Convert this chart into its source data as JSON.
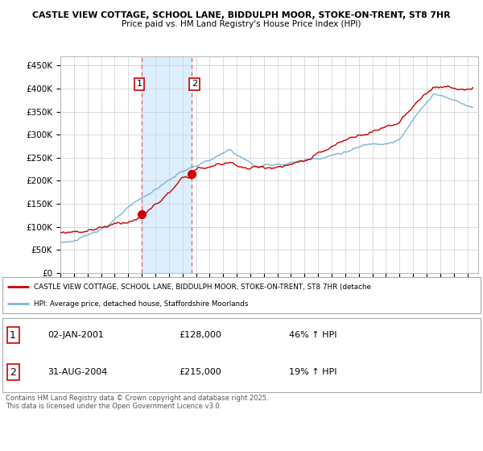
{
  "title_line1": "CASTLE VIEW COTTAGE, SCHOOL LANE, BIDDULPH MOOR, STOKE-ON-TRENT, ST8 7HR",
  "title_line2": "Price paid vs. HM Land Registry's House Price Index (HPI)",
  "ylabel_ticks": [
    "£0",
    "£50K",
    "£100K",
    "£150K",
    "£200K",
    "£250K",
    "£300K",
    "£350K",
    "£400K",
    "£450K"
  ],
  "ytick_values": [
    0,
    50000,
    100000,
    150000,
    200000,
    250000,
    300000,
    350000,
    400000,
    450000
  ],
  "ylim": [
    0,
    470000
  ],
  "xlim_start": 1995.0,
  "xlim_end": 2025.8,
  "purchase1_date": 2001.01,
  "purchase1_price": 128000,
  "purchase2_date": 2004.67,
  "purchase2_price": 215000,
  "shade_xmin": 2001.01,
  "shade_xmax": 2004.67,
  "vline1_x": 2001.01,
  "vline2_x": 2004.67,
  "hpi_color": "#7ab5d8",
  "price_color": "#cc0000",
  "shade_color": "#ddeeff",
  "legend_label1": "CASTLE VIEW COTTAGE, SCHOOL LANE, BIDDULPH MOOR, STOKE-ON-TRENT, ST8 7HR (detache",
  "legend_label2": "HPI: Average price, detached house, Staffordshire Moorlands",
  "table_rows": [
    {
      "num": "1",
      "date": "02-JAN-2001",
      "price": "£128,000",
      "pct": "46% ↑ HPI"
    },
    {
      "num": "2",
      "date": "31-AUG-2004",
      "price": "£215,000",
      "pct": "19% ↑ HPI"
    }
  ],
  "footer": "Contains HM Land Registry data © Crown copyright and database right 2025.\nThis data is licensed under the Open Government Licence v3.0.",
  "background_color": "#ffffff",
  "plot_bg_color": "#ffffff",
  "grid_color": "#cccccc"
}
